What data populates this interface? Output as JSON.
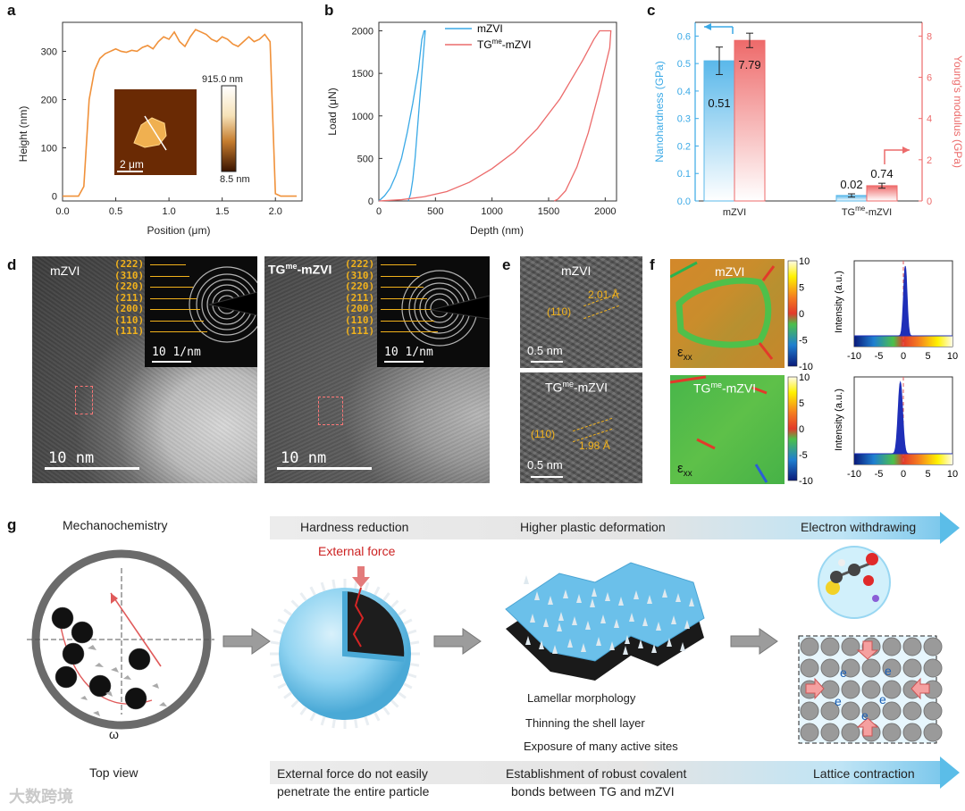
{
  "panel_letters": {
    "a": "a",
    "b": "b",
    "c": "c",
    "d": "d",
    "e": "e",
    "f": "f",
    "g": "g"
  },
  "chart_data": [
    {
      "id": "a",
      "type": "line",
      "title": "",
      "xlabel": "Position (μm)",
      "ylabel": "Height (nm)",
      "xlim": [
        0.0,
        2.25
      ],
      "ylim": [
        -10,
        360
      ],
      "xticks": [
        "0.0",
        "0.5",
        "1.0",
        "1.5",
        "2.0"
      ],
      "yticks": [
        "0",
        "100",
        "200",
        "300"
      ],
      "color": "#f0913a",
      "x": [
        0.0,
        0.15,
        0.2,
        0.25,
        0.3,
        0.35,
        0.4,
        0.45,
        0.5,
        0.55,
        0.6,
        0.65,
        0.7,
        0.75,
        0.8,
        0.85,
        0.9,
        0.95,
        1.0,
        1.05,
        1.1,
        1.15,
        1.2,
        1.25,
        1.3,
        1.35,
        1.4,
        1.45,
        1.5,
        1.55,
        1.6,
        1.65,
        1.7,
        1.75,
        1.8,
        1.85,
        1.9,
        1.95,
        2.0,
        2.05,
        2.2
      ],
      "y": [
        0,
        0,
        20,
        200,
        260,
        285,
        295,
        300,
        305,
        300,
        298,
        302,
        300,
        308,
        312,
        305,
        320,
        330,
        325,
        340,
        320,
        310,
        330,
        345,
        340,
        335,
        325,
        320,
        330,
        325,
        315,
        310,
        320,
        330,
        320,
        325,
        335,
        320,
        5,
        0,
        0
      ],
      "inset": {
        "scale_text": "2 μm",
        "cbar_max": "915.0 nm",
        "cbar_min": "8.5 nm"
      }
    },
    {
      "id": "b",
      "type": "line",
      "xlabel": "Depth (nm)",
      "ylabel": "Load (μN)",
      "xlim": [
        0,
        2100
      ],
      "ylim": [
        0,
        2100
      ],
      "xticks": [
        "0",
        "500",
        "1000",
        "1500",
        "2000"
      ],
      "yticks": [
        "0",
        "500",
        "1000",
        "1500",
        "2000"
      ],
      "series": [
        {
          "name": "mZVI",
          "color": "#3aa9e6",
          "x": [
            0,
            50,
            100,
            150,
            200,
            250,
            300,
            350,
            380,
            400,
            410,
            380,
            350,
            320,
            300,
            280,
            260
          ],
          "y": [
            0,
            60,
            150,
            300,
            500,
            800,
            1150,
            1550,
            1900,
            2000,
            2000,
            1500,
            1000,
            500,
            250,
            80,
            0
          ]
        },
        {
          "name": "TG^me-mZVI",
          "color": "#ec6b6b",
          "x": [
            0,
            200,
            400,
            600,
            800,
            1000,
            1200,
            1400,
            1600,
            1800,
            1900,
            1950,
            2000,
            2050,
            2040,
            1950,
            1850,
            1750,
            1650,
            1580,
            1550
          ],
          "y": [
            0,
            15,
            50,
            110,
            220,
            380,
            580,
            850,
            1200,
            1650,
            1900,
            2000,
            2000,
            2000,
            1800,
            1300,
            800,
            400,
            120,
            20,
            0
          ]
        }
      ]
    },
    {
      "id": "c",
      "type": "bar",
      "categories": [
        "mZVI",
        "TG^me-mZVI"
      ],
      "ylabel": "Nanohardness (GPa)",
      "y2label": "Young's modulus (GPa)",
      "ylim": [
        0.0,
        0.65
      ],
      "y2lim": [
        0,
        8.6667
      ],
      "yticks": [
        "0.0",
        "0.1",
        "0.2",
        "0.3",
        "0.4",
        "0.5",
        "0.6"
      ],
      "y2ticks": [
        "0",
        "2",
        "4",
        "6",
        "8"
      ],
      "series": [
        {
          "name": "Nanohardness",
          "axis": "left",
          "color": "#5ab8ea",
          "values": [
            0.51,
            0.02
          ],
          "errors": [
            0.05,
            0.006
          ],
          "labels": [
            "0.51",
            "0.02"
          ]
        },
        {
          "name": "Young's modulus",
          "axis": "right",
          "color": "#ee6a6a",
          "values": [
            7.79,
            0.74
          ],
          "errors": [
            0.35,
            0.12
          ],
          "labels": [
            "7.79",
            "0.74"
          ]
        }
      ]
    },
    {
      "id": "f1",
      "type": "area",
      "xlabel": "",
      "ylabel": "Intensity (a.u.)",
      "xlim": [
        -10,
        10
      ],
      "xticks": [
        "-10",
        "-5",
        "0",
        "5",
        "10"
      ],
      "peak_center": 0.4,
      "peak_width": 0.35
    },
    {
      "id": "f2",
      "type": "area",
      "xlabel": "",
      "ylabel": "Intensity (a.u.)",
      "xlim": [
        -10,
        10
      ],
      "xticks": [
        "-10",
        "-5",
        "0",
        "5",
        "10"
      ],
      "peak_center": -0.6,
      "peak_width": 0.45
    }
  ],
  "panel_d": {
    "left_label": "mZVI",
    "right_label_main": "TG",
    "right_label_sup": "me",
    "right_label_tail": "-mZVI",
    "scale_nm": "10 nm",
    "scale_recip": "10 1/nm",
    "rings": [
      "(222)",
      "(310)",
      "(220)",
      "(211)",
      "(200)",
      "(110)",
      "(111)"
    ]
  },
  "panel_e": {
    "top_label": "mZVI",
    "bottom_label_main": "TG",
    "bottom_label_sup": "me",
    "bottom_label_tail": "-mZVI",
    "top_spacing": "2.01 Å",
    "bottom_spacing": "1.98 Å",
    "plane": "(110)",
    "scale": "0.5 nm"
  },
  "panel_f": {
    "top_label": "mZVI",
    "bottom_label_main": "TG",
    "bottom_label_sup": "me",
    "bottom_label_tail": "-mZVI",
    "strain_main": "ε",
    "strain_sub": "xx",
    "colorbar_ticks": [
      "10",
      "5",
      "0",
      "-5",
      "-10"
    ]
  },
  "panel_g": {
    "mechanochemistry": "Mechanochemistry",
    "omega": "ω",
    "top_view": "Top view",
    "band_top": [
      "Hardness reduction",
      "Higher plastic deformation",
      "Electron withdrawing"
    ],
    "external_force": "External force",
    "morphology_notes": [
      "Lamellar morphology",
      "Thinning the shell layer",
      "Exposure of many active sites"
    ],
    "electron": "e",
    "band_bottom": [
      "External force do not easily",
      "penetrate the entire particle",
      "Establishment of robust covalent",
      "bonds between TG and mZVI",
      "Lattice contraction"
    ]
  },
  "watermark": "大数跨境",
  "colors": {
    "orange": "#f0913a",
    "blue": "#3aa9e6",
    "red": "#ec6b6b",
    "gold": "#f2b21b"
  }
}
